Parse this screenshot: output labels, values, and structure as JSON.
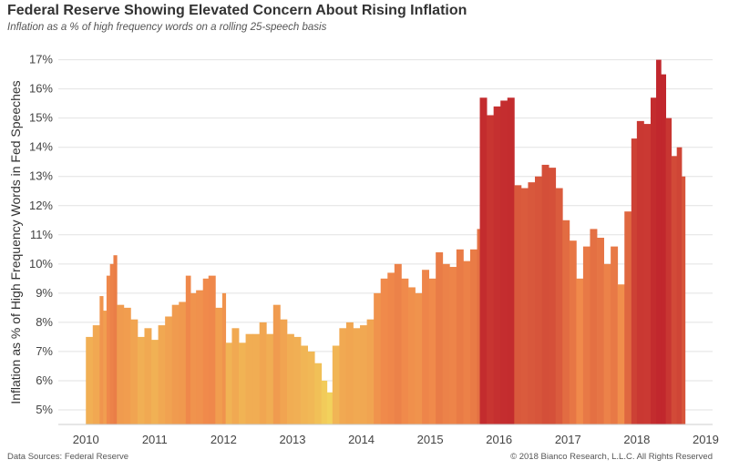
{
  "header": {
    "title": "Federal Reserve Showing Elevated Concern About Rising Inflation",
    "subtitle": "Inflation as a % of high frequency words on a rolling 25-speech basis"
  },
  "footer": {
    "source": "Data Sources: Federal Reserve",
    "copyright": "© 2018 Bianco Research, L.L.C. All Rights Reserved"
  },
  "colors": {
    "low": "#f2d45c",
    "mid": "#f08a4b",
    "high": "#c1272d",
    "grid": "#e2e2e2"
  },
  "chart_data": {
    "type": "bar",
    "title": "Federal Reserve Showing Elevated Concern About Rising Inflation",
    "subtitle": "Inflation as a % of high frequency words on a rolling 25-speech basis",
    "xlabel": "",
    "ylabel": "Inflation as % of High Frequency Words in Fed Speeches",
    "ylim": [
      4.5,
      17.3
    ],
    "xlim": [
      2009.6,
      2019.1
    ],
    "yticks": [
      5,
      6,
      7,
      8,
      9,
      10,
      11,
      12,
      13,
      14,
      15,
      16,
      17
    ],
    "ytick_labels": [
      "5%",
      "6%",
      "7%",
      "8%",
      "9%",
      "10%",
      "11%",
      "12%",
      "13%",
      "14%",
      "15%",
      "16%",
      "17%"
    ],
    "xticks": [
      2010,
      2011,
      2012,
      2013,
      2014,
      2015,
      2016,
      2017,
      2018,
      2019
    ],
    "xtick_labels": [
      "2010",
      "2011",
      "2012",
      "2013",
      "2014",
      "2015",
      "2016",
      "2017",
      "2018",
      "2019"
    ],
    "grid": "horizontal",
    "legend": "none",
    "points": [
      [
        2010.0,
        7.5
      ],
      [
        2010.1,
        7.9
      ],
      [
        2010.2,
        8.9
      ],
      [
        2010.25,
        8.4
      ],
      [
        2010.3,
        9.6
      ],
      [
        2010.35,
        10.0
      ],
      [
        2010.4,
        10.3
      ],
      [
        2010.45,
        8.6
      ],
      [
        2010.55,
        8.5
      ],
      [
        2010.65,
        8.1
      ],
      [
        2010.75,
        7.5
      ],
      [
        2010.85,
        7.8
      ],
      [
        2010.95,
        7.4
      ],
      [
        2011.05,
        7.9
      ],
      [
        2011.15,
        8.2
      ],
      [
        2011.25,
        8.6
      ],
      [
        2011.35,
        8.7
      ],
      [
        2011.45,
        9.6
      ],
      [
        2011.52,
        9.0
      ],
      [
        2011.6,
        9.1
      ],
      [
        2011.7,
        9.5
      ],
      [
        2011.78,
        9.6
      ],
      [
        2011.88,
        8.5
      ],
      [
        2011.98,
        9.0
      ],
      [
        2012.03,
        7.3
      ],
      [
        2012.12,
        7.8
      ],
      [
        2012.22,
        7.3
      ],
      [
        2012.32,
        7.6
      ],
      [
        2012.42,
        7.6
      ],
      [
        2012.52,
        8.0
      ],
      [
        2012.62,
        7.6
      ],
      [
        2012.72,
        8.6
      ],
      [
        2012.82,
        8.1
      ],
      [
        2012.92,
        7.6
      ],
      [
        2013.02,
        7.5
      ],
      [
        2013.12,
        7.2
      ],
      [
        2013.22,
        7.0
      ],
      [
        2013.32,
        6.6
      ],
      [
        2013.42,
        6.0
      ],
      [
        2013.5,
        5.6
      ],
      [
        2013.58,
        7.2
      ],
      [
        2013.68,
        7.8
      ],
      [
        2013.78,
        8.0
      ],
      [
        2013.88,
        7.8
      ],
      [
        2013.98,
        7.9
      ],
      [
        2014.08,
        8.1
      ],
      [
        2014.18,
        9.0
      ],
      [
        2014.28,
        9.5
      ],
      [
        2014.38,
        9.7
      ],
      [
        2014.48,
        10.0
      ],
      [
        2014.58,
        9.5
      ],
      [
        2014.68,
        9.2
      ],
      [
        2014.78,
        9.0
      ],
      [
        2014.88,
        9.8
      ],
      [
        2014.98,
        9.5
      ],
      [
        2015.08,
        10.4
      ],
      [
        2015.18,
        10.0
      ],
      [
        2015.28,
        9.9
      ],
      [
        2015.38,
        10.5
      ],
      [
        2015.48,
        10.1
      ],
      [
        2015.58,
        10.5
      ],
      [
        2015.68,
        11.2
      ],
      [
        2015.72,
        15.7
      ],
      [
        2015.82,
        15.1
      ],
      [
        2015.92,
        15.4
      ],
      [
        2016.02,
        15.6
      ],
      [
        2016.12,
        15.7
      ],
      [
        2016.22,
        12.7
      ],
      [
        2016.32,
        12.6
      ],
      [
        2016.42,
        12.8
      ],
      [
        2016.52,
        13.0
      ],
      [
        2016.62,
        13.4
      ],
      [
        2016.72,
        13.3
      ],
      [
        2016.82,
        12.6
      ],
      [
        2016.92,
        11.5
      ],
      [
        2017.02,
        10.8
      ],
      [
        2017.12,
        9.5
      ],
      [
        2017.22,
        10.6
      ],
      [
        2017.32,
        11.2
      ],
      [
        2017.42,
        10.9
      ],
      [
        2017.52,
        10.0
      ],
      [
        2017.62,
        10.6
      ],
      [
        2017.72,
        9.3
      ],
      [
        2017.82,
        11.8
      ],
      [
        2017.92,
        14.3
      ],
      [
        2018.0,
        14.9
      ],
      [
        2018.1,
        14.8
      ],
      [
        2018.2,
        15.7
      ],
      [
        2018.28,
        17.0
      ],
      [
        2018.35,
        16.5
      ],
      [
        2018.42,
        15.0
      ],
      [
        2018.5,
        13.7
      ],
      [
        2018.58,
        14.0
      ],
      [
        2018.65,
        13.0
      ]
    ]
  }
}
